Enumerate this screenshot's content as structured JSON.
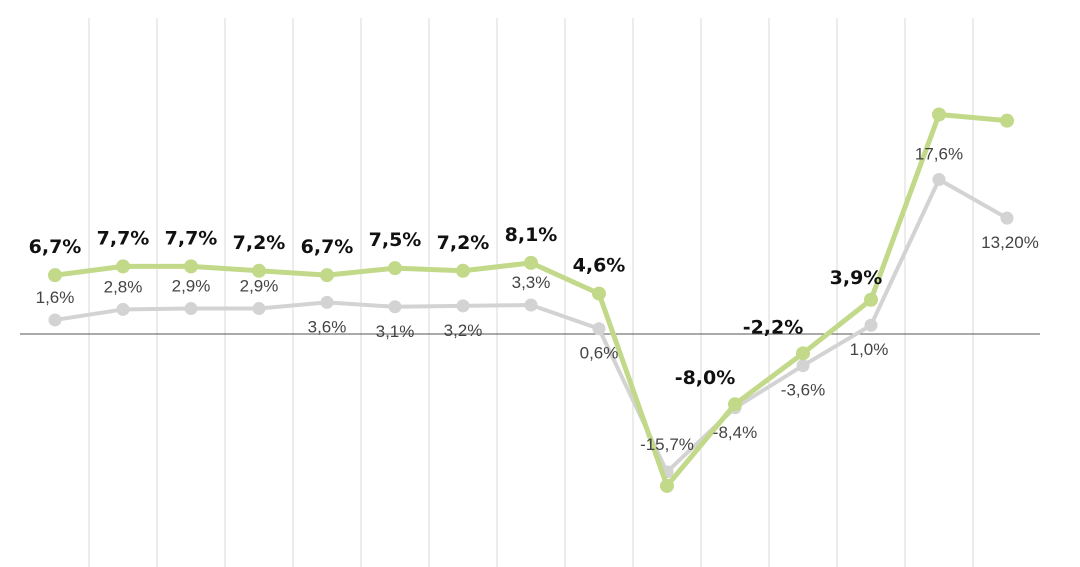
{
  "chart_data": {
    "type": "line",
    "title": "",
    "xlabel": "",
    "ylabel": "",
    "ylim": [
      -18,
      26
    ],
    "grid": "vertical",
    "legend": "none",
    "x": [
      1,
      2,
      3,
      4,
      5,
      6,
      7,
      8,
      9,
      10,
      11,
      12,
      13,
      14,
      15
    ],
    "series": [
      {
        "color": "#c2d98a",
        "values": [
          6.7,
          7.7,
          7.7,
          7.2,
          6.7,
          7.5,
          7.2,
          8.1,
          4.6,
          -17.3,
          -8.0,
          -2.2,
          3.9,
          25.0,
          24.3
        ],
        "labels": [
          "6,7%",
          "7,7%",
          "7,7%",
          "7,2%",
          "6,7%",
          "7,5%",
          "7,2%",
          "8,1%",
          "4,6%",
          "",
          "-8,0%",
          "-2,2%",
          "3,9%",
          "",
          ""
        ]
      },
      {
        "color": "#d3d3d3",
        "values": [
          1.6,
          2.8,
          2.9,
          2.9,
          3.6,
          3.1,
          3.2,
          3.3,
          0.6,
          -15.7,
          -8.4,
          -3.6,
          1.0,
          17.6,
          13.2
        ],
        "labels": [
          "1,6%",
          "2,8%",
          "2,9%",
          "2,9%",
          "3,6%",
          "3,1%",
          "3,2%",
          "3,3%",
          "0,6%",
          "-15,7%",
          "-8,4%",
          "-3,6%",
          "1,0%",
          "17,6%",
          "13,20%"
        ]
      }
    ]
  }
}
